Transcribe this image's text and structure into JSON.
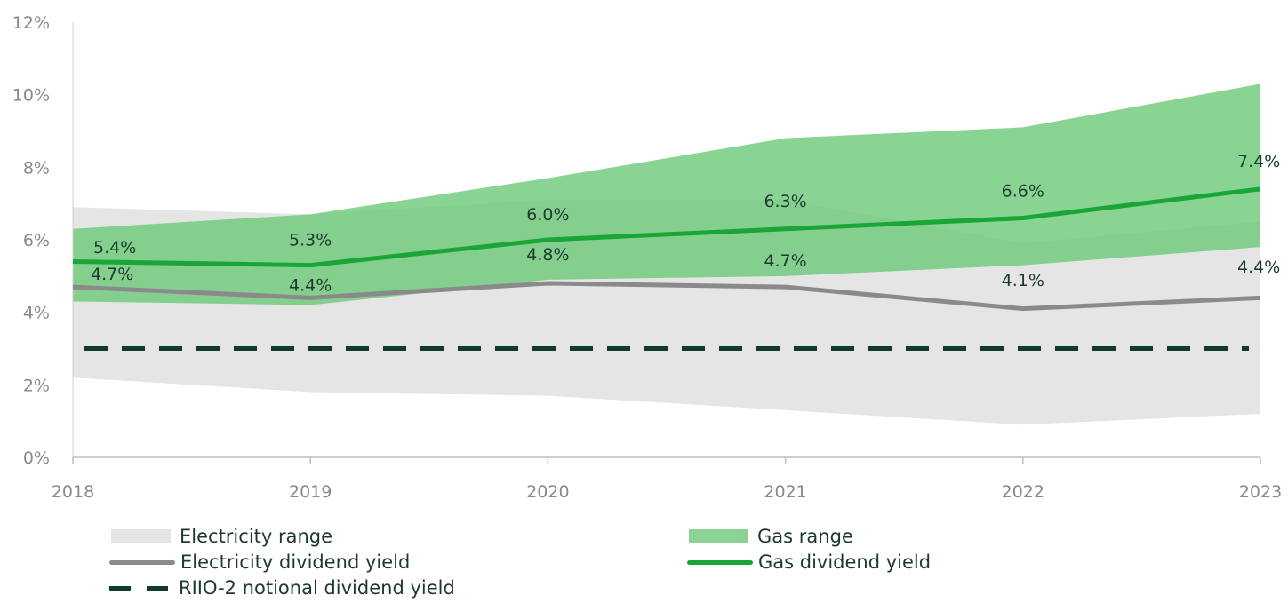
{
  "colors": {
    "electricity_range": "#e5e5e5",
    "gas_range": "#6cc878",
    "electricity_line": "#8a8a8a",
    "gas_line": "#1aa636",
    "riio_line": "#0f3b2b",
    "label_text": "#1e3a2f",
    "axis_text": "#8a8a8a"
  },
  "chart_data": {
    "type": "line",
    "title": "",
    "xlabel": "",
    "ylabel": "",
    "x": [
      "2018",
      "2019",
      "2020",
      "2021",
      "2022",
      "2023"
    ],
    "ylim": [
      0,
      12
    ],
    "yticks": [
      0,
      2,
      4,
      6,
      8,
      10,
      12
    ],
    "ytick_labels": [
      "0%",
      "2%",
      "4%",
      "6%",
      "8%",
      "10%",
      "12%"
    ],
    "grid": false,
    "legend_position": "bottom",
    "areas": [
      {
        "name": "Electricity range",
        "lower": [
          2.2,
          1.8,
          1.7,
          1.3,
          0.9,
          1.2
        ],
        "upper": [
          6.9,
          6.7,
          7.1,
          7.1,
          5.9,
          6.5
        ]
      },
      {
        "name": "Gas range",
        "lower": [
          4.3,
          4.2,
          4.9,
          5.0,
          5.3,
          5.8
        ],
        "upper": [
          6.3,
          6.7,
          7.7,
          8.8,
          9.1,
          10.3
        ]
      }
    ],
    "series": [
      {
        "name": "Electricity dividend yield",
        "values": [
          4.7,
          4.4,
          4.8,
          4.7,
          4.1,
          4.4
        ],
        "labels": [
          "4.7%",
          "4.4%",
          "4.8%",
          "4.7%",
          "4.1%",
          "4.4%"
        ]
      },
      {
        "name": "Gas dividend yield",
        "values": [
          5.4,
          5.3,
          6.0,
          6.3,
          6.6,
          7.4
        ],
        "labels": [
          "5.4%",
          "5.3%",
          "6.0%",
          "6.3%",
          "6.6%",
          "7.4%"
        ]
      },
      {
        "name": "RIIO-2 notional dividend yield",
        "values": [
          3.0,
          3.0,
          3.0,
          3.0,
          3.0,
          3.0
        ]
      }
    ]
  },
  "legend": {
    "electricity_range": "Electricity range",
    "gas_range": "Gas range",
    "electricity_yield": "Electricity dividend yield",
    "gas_yield": "Gas dividend yield",
    "riio_yield": "RIIO-2 notional dividend yield"
  }
}
